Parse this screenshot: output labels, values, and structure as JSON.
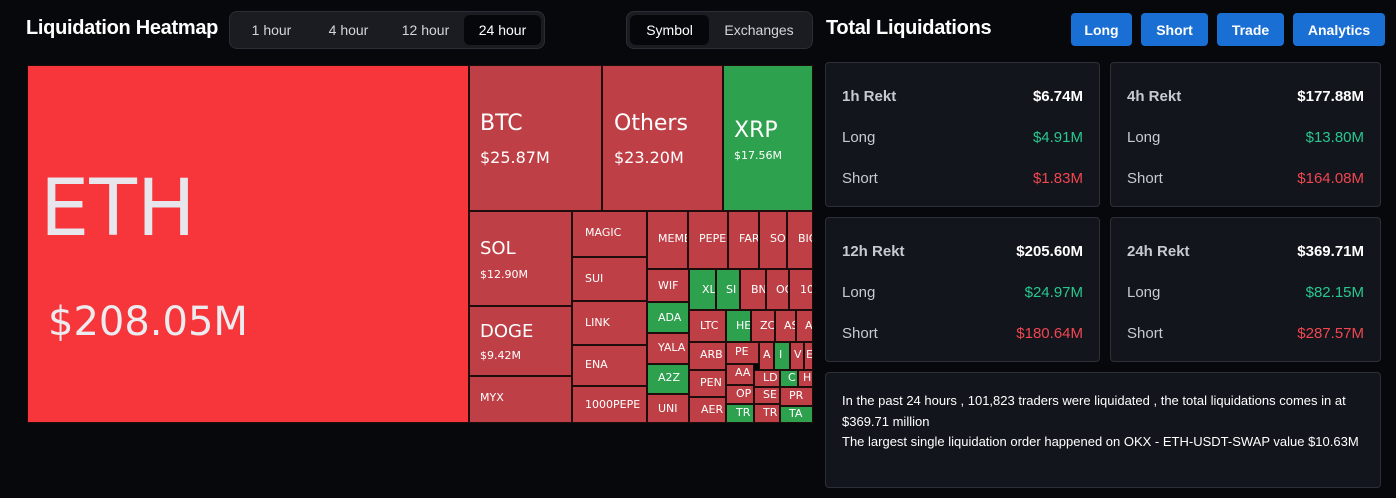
{
  "heatmap": {
    "title": "Liquidation Heatmap",
    "time_tabs": [
      "1 hour",
      "4 hour",
      "12 hour",
      "24 hour"
    ],
    "active_time_tab": "24 hour",
    "view_tabs": [
      "Symbol",
      "Exchanges"
    ],
    "active_view_tab": "Symbol",
    "cells": [
      {
        "symbol": "ETH",
        "amount": "$208.05M",
        "color": "eth"
      },
      {
        "symbol": "BTC",
        "amount": "$25.87M",
        "color": "red"
      },
      {
        "symbol": "Others",
        "amount": "$23.20M",
        "color": "red"
      },
      {
        "symbol": "XRP",
        "amount": "$17.56M",
        "color": "green"
      },
      {
        "symbol": "SOL",
        "amount": "$12.90M",
        "color": "red"
      },
      {
        "symbol": "DOGE",
        "amount": "$9.42M",
        "color": "red"
      },
      {
        "symbol": "MYX",
        "color": "red"
      },
      {
        "symbol": "MAGIC",
        "color": "red"
      },
      {
        "symbol": "SUI",
        "color": "red"
      },
      {
        "symbol": "LINK",
        "color": "red"
      },
      {
        "symbol": "ENA",
        "color": "red"
      },
      {
        "symbol": "1000PEPE",
        "color": "red"
      },
      {
        "symbol": "MEME",
        "color": "red"
      },
      {
        "symbol": "PEPE",
        "color": "red"
      },
      {
        "symbol": "FAR",
        "color": "red"
      },
      {
        "symbol": "SO",
        "color": "red"
      },
      {
        "symbol": "BIO",
        "color": "red"
      },
      {
        "symbol": "WIF",
        "color": "red"
      },
      {
        "symbol": "XL",
        "color": "green"
      },
      {
        "symbol": "SI",
        "color": "green"
      },
      {
        "symbol": "BN",
        "color": "red"
      },
      {
        "symbol": "OO",
        "color": "red"
      },
      {
        "symbol": "10",
        "color": "red"
      },
      {
        "symbol": "ADA",
        "color": "green"
      },
      {
        "symbol": "LTC",
        "color": "red"
      },
      {
        "symbol": "HE",
        "color": "green"
      },
      {
        "symbol": "ZC",
        "color": "red"
      },
      {
        "symbol": "AS",
        "color": "red"
      },
      {
        "symbol": "AV",
        "color": "red"
      },
      {
        "symbol": "YALA",
        "color": "red"
      },
      {
        "symbol": "ARB",
        "color": "red"
      },
      {
        "symbol": "PE",
        "color": "red"
      },
      {
        "symbol": "A",
        "color": "red"
      },
      {
        "symbol": "I",
        "color": "green"
      },
      {
        "symbol": "V",
        "color": "red"
      },
      {
        "symbol": "E",
        "color": "red"
      },
      {
        "symbol": "A2Z",
        "color": "green"
      },
      {
        "symbol": "PEN",
        "color": "red"
      },
      {
        "symbol": "AA",
        "color": "red"
      },
      {
        "symbol": "LD",
        "color": "red"
      },
      {
        "symbol": "C",
        "color": "green"
      },
      {
        "symbol": "H",
        "color": "red"
      },
      {
        "symbol": "UNI",
        "color": "red"
      },
      {
        "symbol": "AER",
        "color": "red"
      },
      {
        "symbol": "OP",
        "color": "red"
      },
      {
        "symbol": "SE",
        "color": "red"
      },
      {
        "symbol": "PR",
        "color": "red"
      },
      {
        "symbol": "TR",
        "color": "green"
      },
      {
        "symbol": "TR",
        "color": "red"
      },
      {
        "symbol": "TA",
        "color": "green"
      }
    ]
  },
  "total": {
    "title": "Total Liquidations",
    "buttons": [
      "Long",
      "Short",
      "Trade",
      "Analytics"
    ],
    "cards": [
      {
        "label": "1h Rekt",
        "total": "$6.74M",
        "long_label": "Long",
        "long": "$4.91M",
        "short_label": "Short",
        "short": "$1.83M"
      },
      {
        "label": "4h Rekt",
        "total": "$177.88M",
        "long_label": "Long",
        "long": "$13.80M",
        "short_label": "Short",
        "short": "$164.08M"
      },
      {
        "label": "12h Rekt",
        "total": "$205.60M",
        "long_label": "Long",
        "long": "$24.97M",
        "short_label": "Short",
        "short": "$180.64M"
      },
      {
        "label": "24h Rekt",
        "total": "$369.71M",
        "long_label": "Long",
        "long": "$82.15M",
        "short_label": "Short",
        "short": "$287.57M"
      }
    ],
    "summary_line1": "In the past 24 hours , 101,823 traders were liquidated , the total liquidations comes in at $369.71 million",
    "summary_line2": "The largest single liquidation order happened on OKX - ETH-USDT-SWAP value $10.63M"
  }
}
